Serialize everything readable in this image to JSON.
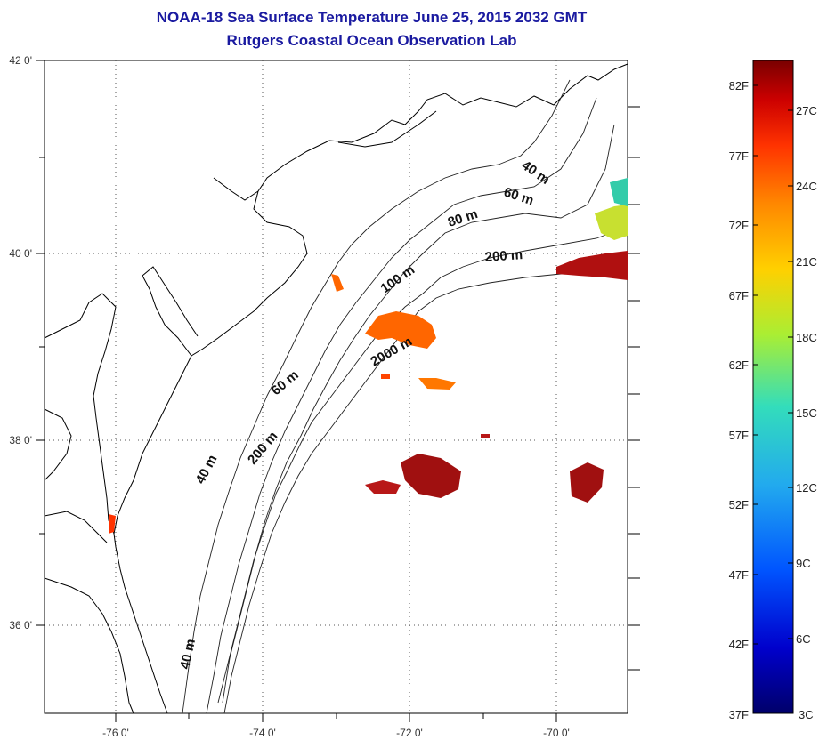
{
  "header": {
    "title": "NOAA-18 Sea Surface Temperature June 25, 2015 2032 GMT",
    "subtitle": "Rutgers Coastal Ocean Observation Lab"
  },
  "map": {
    "lon_ticks": [
      "-76 0'",
      "-74 0'",
      "-72 0'",
      "-70 0'"
    ],
    "lat_ticks": [
      "42 0'",
      "40 0'",
      "38 0'",
      "36 0'"
    ],
    "contour_labels": [
      "40 m",
      "60 m",
      "80 m",
      "200 m",
      "100 m",
      "2000 m",
      "60 m",
      "40 m",
      "200 m",
      "40 m"
    ]
  },
  "colorbar": {
    "fahrenheit_labels": [
      "82F",
      "77F",
      "72F",
      "67F",
      "62F",
      "57F",
      "52F",
      "47F",
      "42F",
      "37F"
    ],
    "celsius_labels": [
      "27C",
      "24C",
      "21C",
      "18C",
      "15C",
      "12C",
      "9C",
      "6C",
      "3C"
    ],
    "colors": [
      "#7a0000",
      "#cc0000",
      "#ff3300",
      "#ff8800",
      "#ffd000",
      "#aaee33",
      "#33ddbb",
      "#22aaee",
      "#0055ff",
      "#0000cc",
      "#00006a"
    ]
  }
}
